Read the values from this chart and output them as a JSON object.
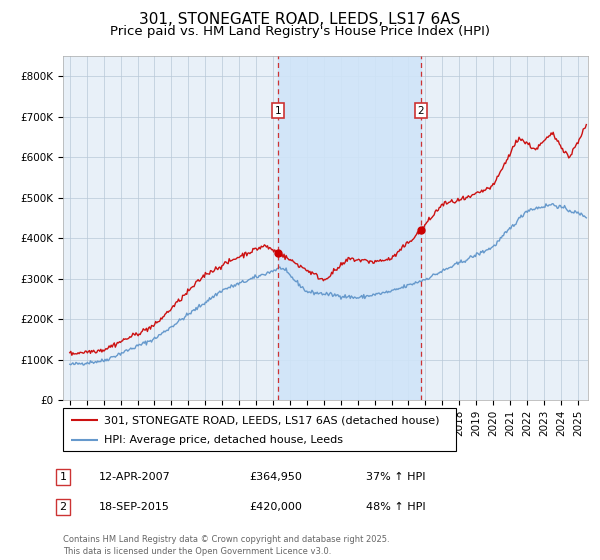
{
  "title": "301, STONEGATE ROAD, LEEDS, LS17 6AS",
  "subtitle": "Price paid vs. HM Land Registry's House Price Index (HPI)",
  "ylim": [
    0,
    850000
  ],
  "yticks": [
    0,
    100000,
    200000,
    300000,
    400000,
    500000,
    600000,
    700000,
    800000
  ],
  "ytick_labels": [
    "£0",
    "£100K",
    "£200K",
    "£300K",
    "£400K",
    "£500K",
    "£600K",
    "£700K",
    "£800K"
  ],
  "xlim_start": 1994.6,
  "xlim_end": 2025.6,
  "background_color": "#ffffff",
  "plot_bg_color": "#e8f0f8",
  "grid_color": "#b8c8d8",
  "sale1_date": 2007.28,
  "sale1_price": 364950,
  "sale1_label": "1",
  "sale2_date": 2015.72,
  "sale2_price": 420000,
  "sale2_label": "2",
  "marker_color": "#cc0000",
  "dashed_line_color": "#cc3333",
  "shade_color": "#d0e4f8",
  "prop_color": "#cc1111",
  "hpi_color": "#6699cc",
  "legend_entries": [
    "301, STONEGATE ROAD, LEEDS, LS17 6AS (detached house)",
    "HPI: Average price, detached house, Leeds"
  ],
  "annotation1": {
    "num": "1",
    "date_str": "12-APR-2007",
    "price_str": "£364,950",
    "hpi_str": "37% ↑ HPI"
  },
  "annotation2": {
    "num": "2",
    "date_str": "18-SEP-2015",
    "price_str": "£420,000",
    "hpi_str": "48% ↑ HPI"
  },
  "footer": "Contains HM Land Registry data © Crown copyright and database right 2025.\nThis data is licensed under the Open Government Licence v3.0.",
  "title_fontsize": 11,
  "subtitle_fontsize": 9.5,
  "tick_fontsize": 7.5,
  "legend_fontsize": 8,
  "ann_fontsize": 8
}
